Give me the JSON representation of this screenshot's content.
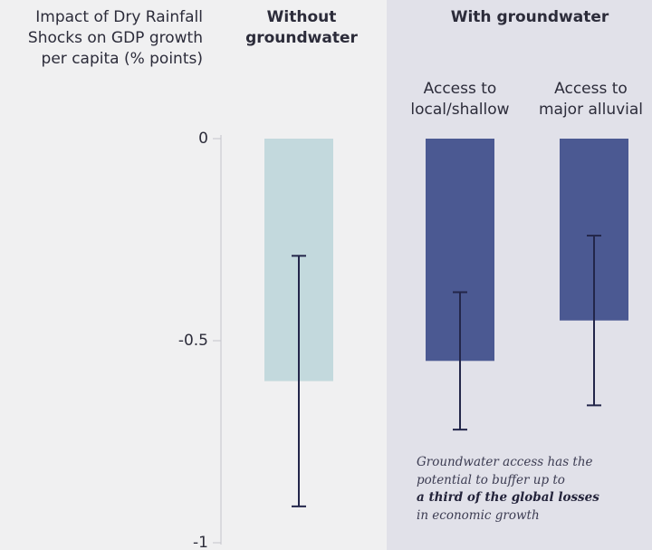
{
  "chart_data": {
    "type": "bar",
    "ylabel": "Impact of Dry Rainfall Shocks on GDP growth per capita (% points)",
    "ylim": [
      -1,
      0
    ],
    "yticks": [
      0,
      -0.5,
      -1
    ],
    "ytick_labels": [
      "0",
      "-0.5",
      "-1"
    ],
    "groups": [
      {
        "label": "Without groundwater",
        "categories": [
          ""
        ]
      },
      {
        "label": "With groundwater",
        "categories": [
          "Access to local/shallow",
          "Access to major alluvial"
        ]
      }
    ],
    "bars": [
      {
        "group": "Without groundwater",
        "category": "",
        "value": -0.6,
        "ci_low": -0.91,
        "ci_high": -0.29,
        "color": "#c3d9dd"
      },
      {
        "group": "With groundwater",
        "category": "Access to local/shallow",
        "value": -0.55,
        "ci_low": -0.72,
        "ci_high": -0.38,
        "color": "#4b5992"
      },
      {
        "group": "With groundwater",
        "category": "Access to major alluvial",
        "value": -0.45,
        "ci_low": -0.66,
        "ci_high": -0.24,
        "color": "#4b5992"
      }
    ],
    "annotation": {
      "line1": "Groundwater access has the",
      "line2": "potential to buffer up to",
      "line3": "a third of the global losses",
      "line4": "in economic growth"
    }
  },
  "colors": {
    "background": "#f0f0f1",
    "panel": "#e1e1e9",
    "axis": "#c4c4cc",
    "errorbar": "#23264a",
    "text": "#2c2c3a"
  }
}
